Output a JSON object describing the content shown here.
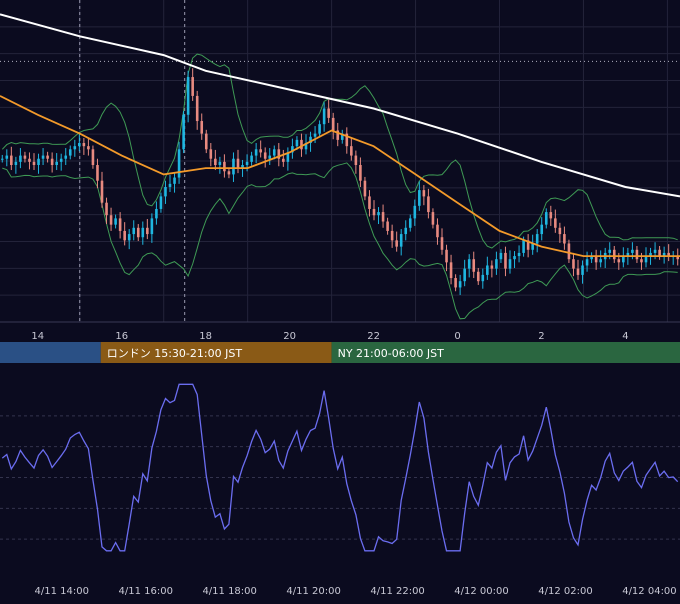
{
  "colors": {
    "background": "#0b0b1f",
    "grid": "#23233a",
    "candle_up": "#1fb6e0",
    "candle_down": "#e88a80",
    "ma_slow": "#ffffff",
    "ma_fast": "#f39a2a",
    "bollinger": "#3f9a55",
    "oscillator": "#6b6df0",
    "session_tokyo": "#2a5085",
    "session_london": "#8a5a16",
    "session_ny": "#2a6640",
    "axis_text": "#c8c8d4"
  },
  "sessions": [
    {
      "label": "",
      "color": "#2a5085",
      "start_hour": -1.0,
      "end_hour": 15.5
    },
    {
      "label": "ロンドン 15:30-21:00 JST",
      "color": "#8a5a16",
      "start_hour": 15.5,
      "end_hour": 21.0
    },
    {
      "label": "NY 21:00-06:00 JST",
      "color": "#2a6640",
      "start_hour": 21.0,
      "end_hour": 30.0
    }
  ],
  "chart_data": [
    {
      "type": "candlestick",
      "x_start_hour": 13.1,
      "x_end_hour": 29.3,
      "x_ticks": [
        "14",
        "16",
        "18",
        "20",
        "22",
        "0",
        "2",
        "4"
      ],
      "x_tick_hours": [
        14,
        16,
        18,
        20,
        22,
        24,
        26,
        28
      ],
      "y_range": [
        0.0,
        1.0
      ],
      "grid": true,
      "dashed_vertical_hours": [
        15.0,
        17.5
      ],
      "dotted_horizontal_level": 0.83,
      "price_series": [
        0.52,
        0.53,
        0.5,
        0.51,
        0.53,
        0.52,
        0.51,
        0.5,
        0.52,
        0.53,
        0.52,
        0.5,
        0.51,
        0.52,
        0.53,
        0.55,
        0.56,
        0.57,
        0.56,
        0.55,
        0.5,
        0.45,
        0.38,
        0.34,
        0.31,
        0.33,
        0.29,
        0.26,
        0.28,
        0.3,
        0.27,
        0.3,
        0.28,
        0.33,
        0.36,
        0.4,
        0.43,
        0.44,
        0.46,
        0.55,
        0.66,
        0.78,
        0.72,
        0.64,
        0.6,
        0.55,
        0.52,
        0.5,
        0.51,
        0.48,
        0.47,
        0.52,
        0.49,
        0.5,
        0.51,
        0.53,
        0.55,
        0.54,
        0.52,
        0.53,
        0.55,
        0.52,
        0.51,
        0.54,
        0.56,
        0.58,
        0.55,
        0.57,
        0.59,
        0.6,
        0.63,
        0.68,
        0.65,
        0.61,
        0.58,
        0.6,
        0.56,
        0.53,
        0.5,
        0.45,
        0.4,
        0.36,
        0.34,
        0.35,
        0.32,
        0.29,
        0.26,
        0.24,
        0.28,
        0.3,
        0.33,
        0.37,
        0.42,
        0.4,
        0.35,
        0.31,
        0.27,
        0.23,
        0.19,
        0.14,
        0.11,
        0.13,
        0.17,
        0.2,
        0.16,
        0.13,
        0.15,
        0.18,
        0.17,
        0.2,
        0.22,
        0.17,
        0.2,
        0.21,
        0.22,
        0.26,
        0.23,
        0.25,
        0.28,
        0.31,
        0.35,
        0.33,
        0.3,
        0.28,
        0.25,
        0.2,
        0.17,
        0.15,
        0.18,
        0.2,
        0.21,
        0.19,
        0.2,
        0.22,
        0.23,
        0.2,
        0.19,
        0.21,
        0.22,
        0.23,
        0.2,
        0.19,
        0.21,
        0.22,
        0.23,
        0.21,
        0.22,
        0.21,
        0.21,
        0.2
      ],
      "ma_slow_points": [
        [
          13.1,
          0.98
        ],
        [
          15,
          0.91
        ],
        [
          17,
          0.85
        ],
        [
          18,
          0.8
        ],
        [
          20,
          0.74
        ],
        [
          22,
          0.68
        ],
        [
          24,
          0.6
        ],
        [
          26,
          0.51
        ],
        [
          28,
          0.43
        ],
        [
          29.3,
          0.4
        ]
      ],
      "ma_fast_points": [
        [
          13.1,
          0.72
        ],
        [
          14,
          0.66
        ],
        [
          15,
          0.6
        ],
        [
          16,
          0.53
        ],
        [
          17,
          0.47
        ],
        [
          18,
          0.49
        ],
        [
          19,
          0.49
        ],
        [
          20,
          0.54
        ],
        [
          21,
          0.61
        ],
        [
          22,
          0.56
        ],
        [
          23,
          0.47
        ],
        [
          24,
          0.38
        ],
        [
          25,
          0.29
        ],
        [
          26,
          0.24
        ],
        [
          27,
          0.21
        ],
        [
          28,
          0.21
        ],
        [
          29.3,
          0.21
        ]
      ]
    },
    {
      "type": "line",
      "x_tick_labels": [
        "4/11 14:00",
        "4/11 16:00",
        "4/11 18:00",
        "4/11 20:00",
        "4/11 22:00",
        "4/12 00:00",
        "4/12 02:00",
        "4/12 04:00"
      ],
      "x_tick_hours": [
        14,
        16,
        18,
        20,
        22,
        24,
        26,
        28
      ],
      "y_range": [
        0.0,
        1.0
      ],
      "grid": true
    }
  ]
}
